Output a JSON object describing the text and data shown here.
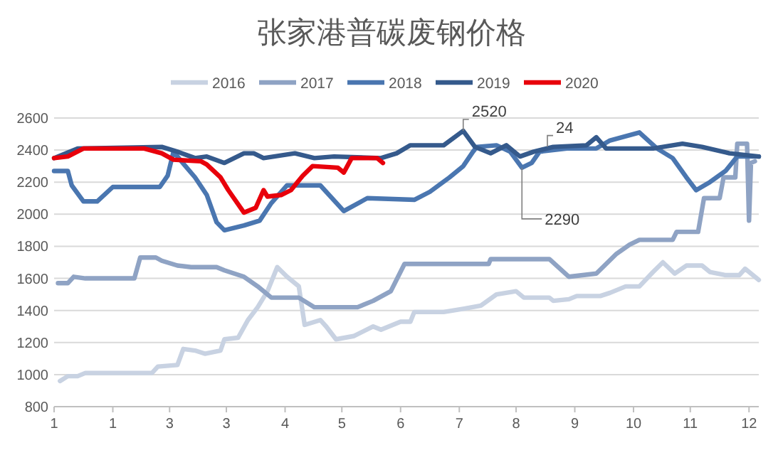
{
  "chart_data": {
    "type": "line",
    "title": "张家港普碳废钢价格",
    "xlim": [
      "--01-01",
      "--12-27"
    ],
    "xticks": [
      {
        "value": "--01-01",
        "label": "1"
      },
      {
        "value": "--01-31",
        "label": "1"
      },
      {
        "value": "--03-01",
        "label": "3"
      },
      {
        "value": "--03-30",
        "label": "3"
      },
      {
        "value": "--04-29",
        "label": "4"
      },
      {
        "value": "--05-28",
        "label": "5"
      },
      {
        "value": "--06-27",
        "label": "6"
      },
      {
        "value": "--07-27",
        "label": "7"
      },
      {
        "value": "--08-25",
        "label": "8"
      },
      {
        "value": "--09-24",
        "label": "9"
      },
      {
        "value": "--10-24",
        "label": "10"
      },
      {
        "value": "--11-22",
        "label": "11"
      },
      {
        "value": "--12-22",
        "label": "12"
      }
    ],
    "ylim": [
      800,
      2600
    ],
    "yticks": [
      800,
      1000,
      1200,
      1400,
      1600,
      1800,
      2000,
      2200,
      2400,
      2600
    ],
    "grid": "y",
    "legend": "top",
    "marker": "none",
    "line_style": "solid",
    "series": [
      {
        "name": "2016",
        "color": "#c8d2e2",
        "x": [
          "--01-04",
          "--01-08",
          "--01-13",
          "--01-17",
          "--02-20",
          "--02-23",
          "--03-05",
          "--03-08",
          "--03-14",
          "--03-19",
          "--03-27",
          "--03-29",
          "--04-05",
          "--04-10",
          "--04-15",
          "--04-20",
          "--04-25",
          "--04-30",
          "--05-06",
          "--05-09",
          "--05-17",
          "--05-20",
          "--05-25",
          "--06-03",
          "--06-13",
          "--06-17",
          "--06-27",
          "--07-02",
          "--07-04",
          "--07-19",
          "--07-29",
          "--08-07",
          "--08-15",
          "--08-25",
          "--08-29",
          "--09-11",
          "--09-13",
          "--09-21",
          "--09-25",
          "--10-07",
          "--10-12",
          "--10-20",
          "--10-27",
          "--11-03",
          "--11-08",
          "--11-14",
          "--11-20",
          "--11-28",
          "--12-02",
          "--12-10",
          "--12-17",
          "--12-20",
          "--12-27"
        ],
        "values": [
          960,
          990,
          990,
          1010,
          1010,
          1050,
          1060,
          1160,
          1150,
          1130,
          1150,
          1220,
          1230,
          1340,
          1420,
          1520,
          1670,
          1610,
          1550,
          1310,
          1340,
          1300,
          1220,
          1240,
          1300,
          1280,
          1330,
          1330,
          1390,
          1390,
          1410,
          1430,
          1500,
          1520,
          1480,
          1480,
          1460,
          1470,
          1490,
          1490,
          1510,
          1550,
          1550,
          1640,
          1700,
          1630,
          1680,
          1680,
          1640,
          1620,
          1620,
          1660,
          1590
        ]
      },
      {
        "name": "2017",
        "color": "#8fa3c4",
        "x": [
          "--01-03",
          "--01-08",
          "--01-11",
          "--01-17",
          "--02-11",
          "--02-14",
          "--02-22",
          "--02-25",
          "--03-05",
          "--03-12",
          "--03-25",
          "--03-29",
          "--04-08",
          "--04-15",
          "--04-22",
          "--05-06",
          "--05-14",
          "--06-05",
          "--06-13",
          "--06-22",
          "--06-29",
          "--07-02",
          "--08-11",
          "--08-12",
          "--09-11",
          "--09-21",
          "--10-05",
          "--10-15",
          "--10-22",
          "--10-27",
          "--11-13",
          "--11-15",
          "--11-26",
          "--11-29",
          "--12-07",
          "--12-09",
          "--12-15",
          "--12-16",
          "--12-21",
          "--12-22",
          "--12-23",
          "--12-25"
        ],
        "values": [
          1570,
          1570,
          1610,
          1600,
          1600,
          1730,
          1730,
          1710,
          1680,
          1670,
          1670,
          1650,
          1610,
          1550,
          1480,
          1480,
          1420,
          1420,
          1460,
          1520,
          1690,
          1690,
          1690,
          1720,
          1720,
          1610,
          1630,
          1750,
          1810,
          1840,
          1840,
          1890,
          1890,
          2100,
          2100,
          2230,
          2230,
          2440,
          2440,
          1960,
          2320,
          2330
        ]
      },
      {
        "name": "2018",
        "color": "#4a76b0",
        "x": [
          "--01-01",
          "--01-08",
          "--01-10",
          "--01-16",
          "--01-23",
          "--01-31",
          "--02-24",
          "--02-28",
          "--03-03",
          "--03-07",
          "--03-14",
          "--03-20",
          "--03-25",
          "--03-29",
          "--04-08",
          "--04-16",
          "--04-22",
          "--04-30",
          "--05-17",
          "--05-29",
          "--06-10",
          "--07-04",
          "--07-12",
          "--07-22",
          "--07-29",
          "--08-03",
          "--08-05",
          "--08-15",
          "--08-22",
          "--08-28",
          "--09-02",
          "--09-06",
          "--09-20",
          "--10-05",
          "--10-12",
          "--10-27",
          "--11-05",
          "--11-13",
          "--11-20",
          "--11-25",
          "--12-02",
          "--12-10",
          "--12-16",
          "--12-27"
        ],
        "values": [
          2270,
          2270,
          2180,
          2080,
          2080,
          2170,
          2170,
          2240,
          2390,
          2330,
          2230,
          2120,
          1950,
          1900,
          1930,
          1960,
          2070,
          2180,
          2180,
          2020,
          2100,
          2090,
          2140,
          2230,
          2300,
          2390,
          2420,
          2430,
          2390,
          2290,
          2320,
          2390,
          2410,
          2410,
          2460,
          2510,
          2410,
          2350,
          2230,
          2150,
          2200,
          2270,
          2360,
          2360
        ]
      },
      {
        "name": "2019",
        "color": "#355a8c",
        "x": [
          "--01-01",
          "--01-13",
          "--02-25",
          "--03-05",
          "--03-14",
          "--03-20",
          "--03-29",
          "--04-08",
          "--04-13",
          "--04-18",
          "--05-04",
          "--05-14",
          "--05-24",
          "--06-17",
          "--06-25",
          "--07-02",
          "--07-19",
          "--07-29",
          "--08-04",
          "--08-12",
          "--08-20",
          "--08-27",
          "--09-03",
          "--09-13",
          "--09-30",
          "--10-05",
          "--10-10",
          "--11-03",
          "--11-18",
          "--11-28",
          "--12-12",
          "--12-27"
        ],
        "values": [
          2350,
          2410,
          2420,
          2390,
          2350,
          2360,
          2320,
          2380,
          2380,
          2350,
          2380,
          2350,
          2360,
          2350,
          2380,
          2430,
          2430,
          2520,
          2420,
          2380,
          2430,
          2360,
          2390,
          2420,
          2430,
          2480,
          2410,
          2410,
          2440,
          2420,
          2380,
          2360
        ]
      },
      {
        "name": "2020",
        "color": "#e8000b",
        "x": [
          "--01-01",
          "--01-08",
          "--01-16",
          "--02-16",
          "--02-25",
          "--03-03",
          "--03-17",
          "--03-20",
          "--03-27",
          "--03-31",
          "--04-08",
          "--04-14",
          "--04-18",
          "--04-20",
          "--04-27",
          "--05-02",
          "--05-08",
          "--05-13",
          "--05-26",
          "--05-29",
          "--06-02",
          "--06-15",
          "--06-18"
        ],
        "values": [
          2350,
          2360,
          2410,
          2410,
          2380,
          2340,
          2330,
          2310,
          2230,
          2150,
          2010,
          2040,
          2150,
          2110,
          2120,
          2150,
          2240,
          2300,
          2290,
          2260,
          2350,
          2350,
          2320
        ]
      }
    ],
    "annotations": [
      {
        "text": "2520",
        "x": "--07-29",
        "y": 2520
      },
      {
        "text": "24",
        "x": "--09-10",
        "y": 2420
      },
      {
        "text": "2290",
        "x": "--08-28",
        "y": 2290
      }
    ]
  }
}
